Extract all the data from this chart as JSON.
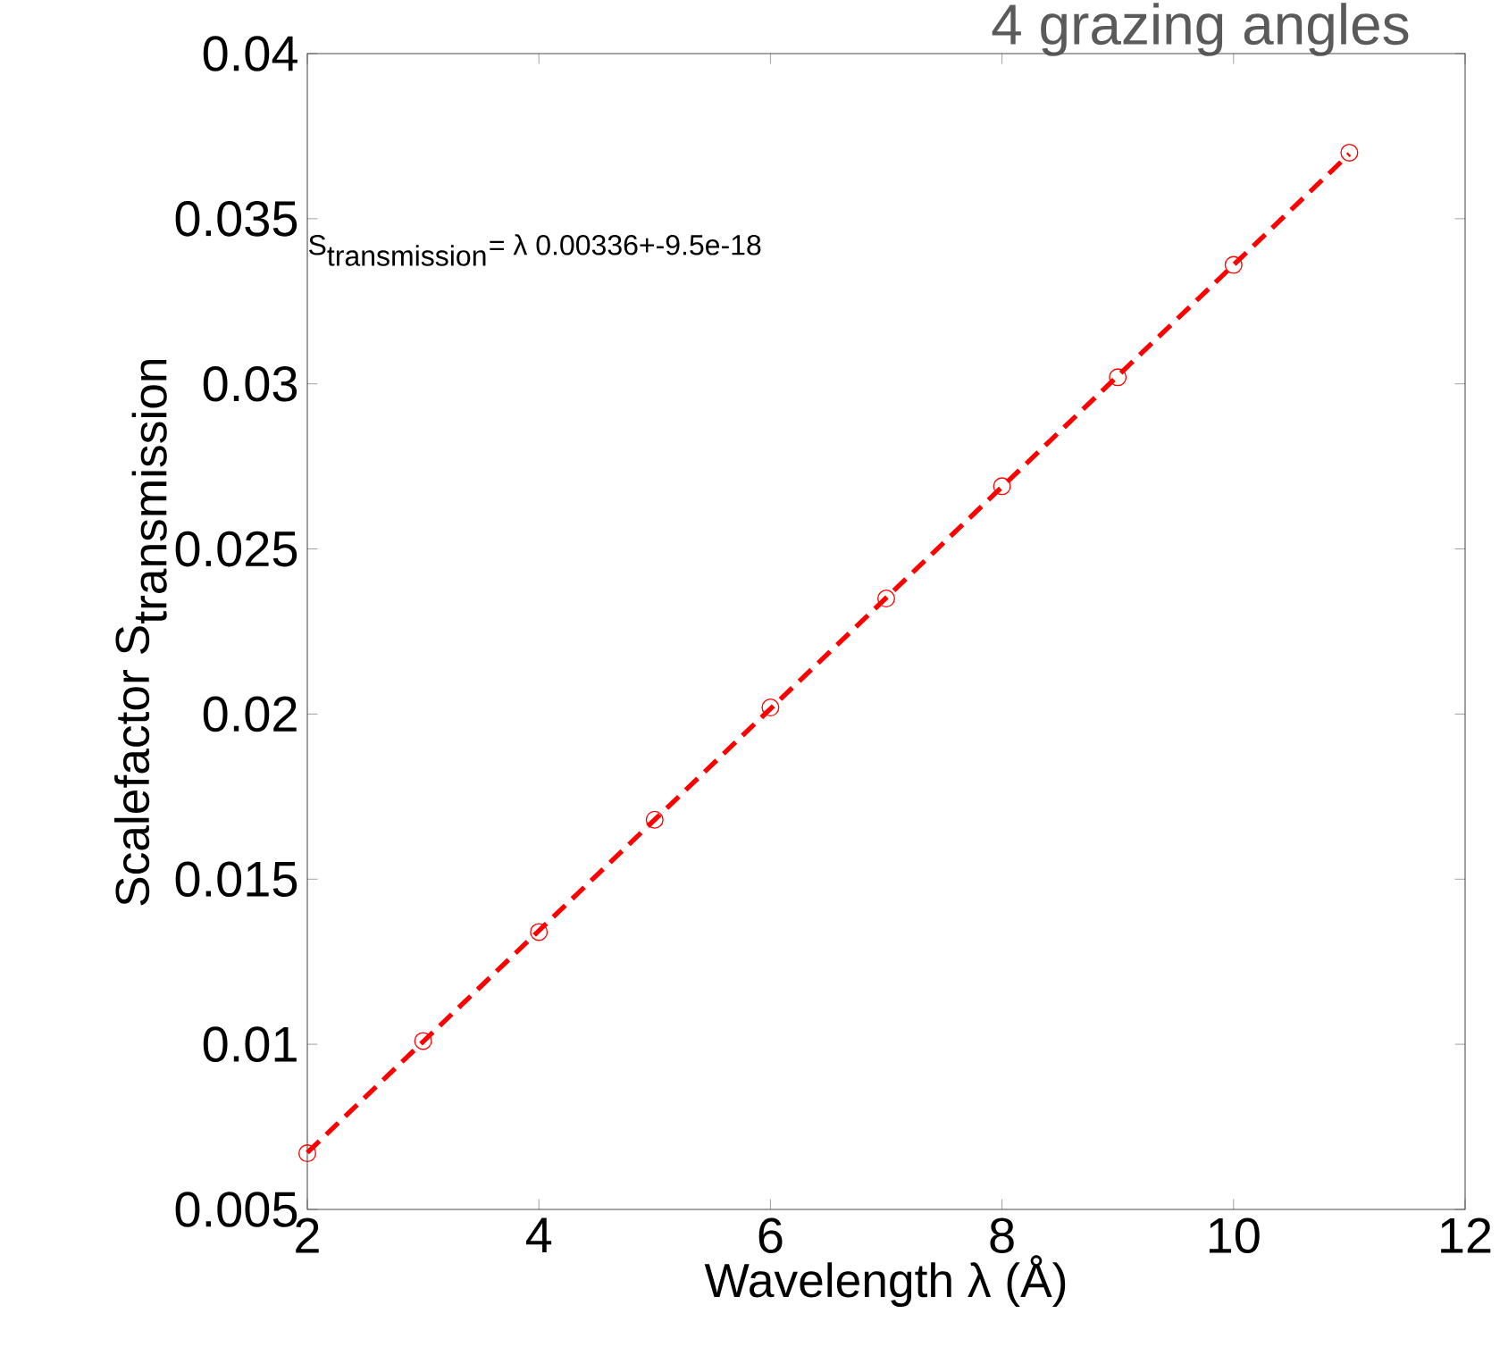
{
  "chart_data": {
    "type": "scatter",
    "xlabel": "Wavelength λ (Å)",
    "ylabel": "\\textrm{Scalefactor S}_{\\textrm{transmission}}",
    "annotations": [
      "4 grazing angles",
      "\\textrm{S}_{\\textrm{transmission}}\\textrm{= λ 0.00336+-9.5e-18}"
    ],
    "xlim": [
      2,
      12
    ],
    "ylim": [
      0.005,
      0.04
    ],
    "xticks": [
      2,
      4,
      6,
      8,
      10,
      12
    ],
    "yticks": [
      0.005,
      0.01,
      0.015,
      0.02,
      0.025,
      0.03,
      0.035,
      0.04
    ],
    "series": [
      {
        "type": "scatter",
        "color": "#ff0000",
        "marker": "circle",
        "x": [
          2,
          3,
          4,
          5,
          6,
          7,
          8,
          9,
          10,
          11
        ],
        "values": [
          0.0067,
          0.0101,
          0.0134,
          0.0168,
          0.0202,
          0.0235,
          0.0269,
          0.0302,
          0.0336,
          0.037
        ]
      },
      {
        "type": "line",
        "color": "#ff0000",
        "line_style": "dashed",
        "marker": "none",
        "x": [
          2,
          11
        ],
        "values": [
          0.00672,
          0.03696
        ]
      }
    ]
  }
}
